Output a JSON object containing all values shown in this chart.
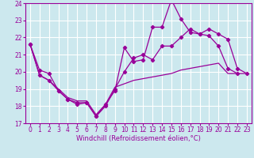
{
  "xlabel": "Windchill (Refroidissement éolien,°C)",
  "background_color": "#cce8ee",
  "grid_color": "#ffffff",
  "line_color": "#990099",
  "x_values": [
    0,
    1,
    2,
    3,
    4,
    5,
    6,
    7,
    8,
    9,
    10,
    11,
    12,
    13,
    14,
    15,
    16,
    17,
    18,
    19,
    20,
    21,
    22,
    23
  ],
  "series1": [
    21.6,
    20.1,
    19.9,
    18.9,
    18.4,
    18.2,
    18.2,
    17.4,
    18.1,
    18.9,
    21.4,
    20.6,
    20.7,
    22.6,
    22.6,
    24.2,
    23.1,
    22.3,
    22.2,
    22.1,
    21.5,
    20.2,
    19.9,
    null
  ],
  "series2": [
    21.6,
    19.8,
    19.5,
    18.9,
    18.4,
    18.1,
    18.2,
    17.4,
    18.0,
    19.0,
    20.0,
    20.8,
    21.0,
    20.7,
    21.5,
    21.5,
    22.0,
    22.5,
    22.2,
    22.5,
    22.2,
    21.9,
    20.2,
    19.9
  ],
  "series3": [
    21.6,
    19.8,
    19.5,
    19.0,
    18.5,
    18.3,
    18.3,
    17.5,
    18.1,
    19.1,
    19.3,
    19.5,
    19.6,
    19.7,
    19.8,
    19.9,
    20.1,
    20.2,
    20.3,
    20.4,
    20.5,
    19.9,
    19.9,
    19.9
  ],
  "ylim": [
    17,
    24
  ],
  "xlim": [
    -0.5,
    23.5
  ],
  "yticks": [
    17,
    18,
    19,
    20,
    21,
    22,
    23,
    24
  ],
  "xticks": [
    0,
    1,
    2,
    3,
    4,
    5,
    6,
    7,
    8,
    9,
    10,
    11,
    12,
    13,
    14,
    15,
    16,
    17,
    18,
    19,
    20,
    21,
    22,
    23
  ],
  "tick_fontsize": 5.5,
  "xlabel_fontsize": 6.0
}
